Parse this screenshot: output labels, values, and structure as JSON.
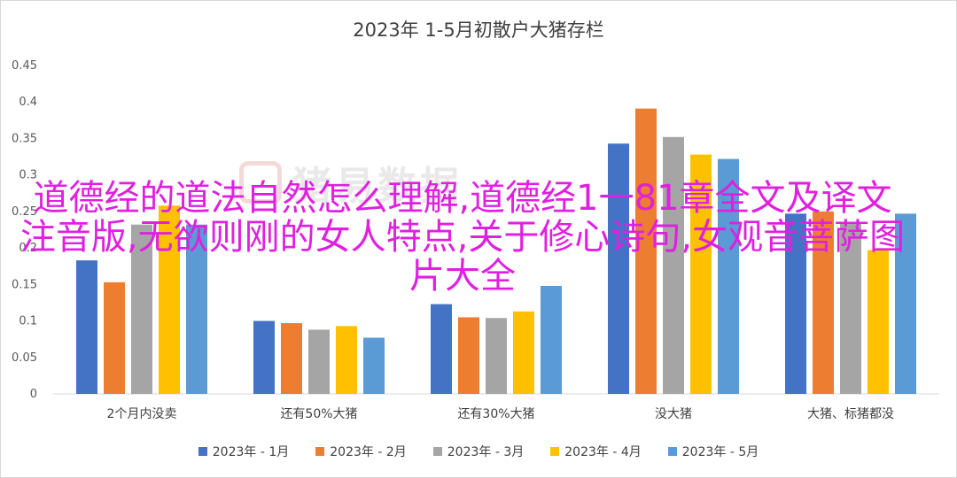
{
  "chart_data": {
    "type": "bar",
    "title": "2023年 1-5月初散户大猪存栏",
    "categories": [
      "2个月内没卖",
      "还有50%大猪",
      "还有30%大猪",
      "没大猪",
      "大猪、标猪都没"
    ],
    "series": [
      {
        "name": "2023年 - 1月",
        "color": "#4472C4",
        "values": [
          0.183,
          0.1,
          0.123,
          0.343,
          0.247
        ]
      },
      {
        "name": "2023年 - 2月",
        "color": "#ED7D31",
        "values": [
          0.153,
          0.097,
          0.105,
          0.391,
          0.25
        ]
      },
      {
        "name": "2023年 - 3月",
        "color": "#A5A5A5",
        "values": [
          0.232,
          0.088,
          0.104,
          0.352,
          0.235
        ]
      },
      {
        "name": "2023年 - 4月",
        "color": "#FFC000",
        "values": [
          0.258,
          0.093,
          0.113,
          0.328,
          0.197
        ]
      },
      {
        "name": "2023年 - 5月",
        "color": "#5B9BD5",
        "values": [
          0.232,
          0.077,
          0.148,
          0.322,
          0.247
        ]
      }
    ],
    "ylim": [
      0,
      0.45
    ],
    "yticks": [
      "0",
      "0.05",
      "0.1",
      "0.15",
      "0.2",
      "0.25",
      "0.3",
      "0.35",
      "0.4",
      "0.45"
    ],
    "grid": false,
    "legend": "bottom"
  },
  "watermark": {
    "text": "猪易数据"
  },
  "overlay_text": "道德经的道法自然怎么理解,道德经1一81章全文及译文注音版,无欲则刚的女人特点,关于修心诗句,女观音菩萨图片大全"
}
